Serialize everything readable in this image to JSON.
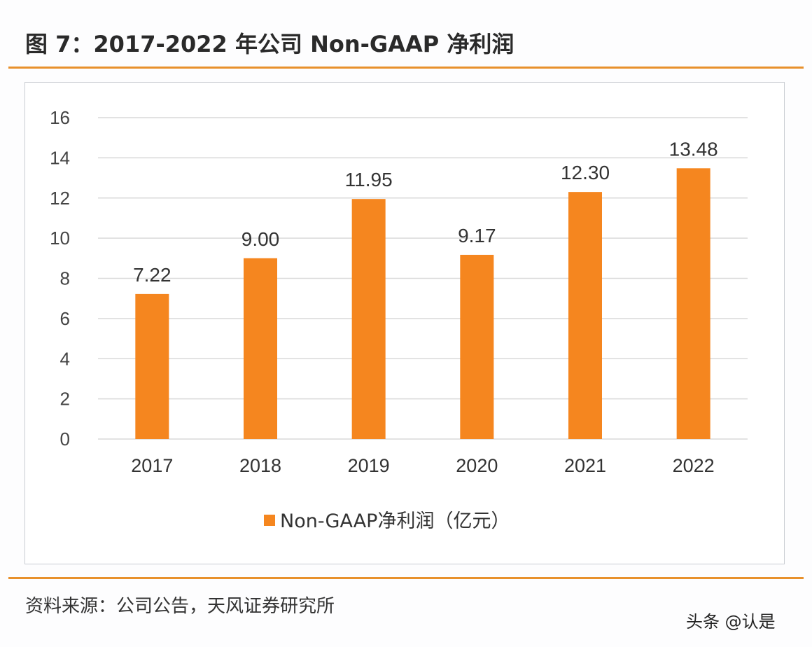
{
  "title": "图 7：2017-2022 年公司 Non-GAAP 净利润",
  "source": "资料来源：公司公告，天风证券研究所",
  "watermark": "头条 @认是",
  "chart_data": {
    "type": "bar",
    "title": "",
    "categories": [
      "2017",
      "2018",
      "2019",
      "2020",
      "2021",
      "2022"
    ],
    "series": [
      {
        "name": "Non-GAAP净利润（亿元）",
        "values": [
          7.22,
          9.0,
          11.95,
          9.17,
          12.3,
          13.48
        ],
        "labels": [
          "7.22",
          "9.00",
          "11.95",
          "9.17",
          "12.30",
          "13.48"
        ],
        "color": "#f5861f"
      }
    ],
    "ylim": [
      0,
      16
    ],
    "yticks": [
      0,
      2,
      4,
      6,
      8,
      10,
      12,
      14,
      16
    ],
    "grid": true,
    "legend": "bottom"
  }
}
